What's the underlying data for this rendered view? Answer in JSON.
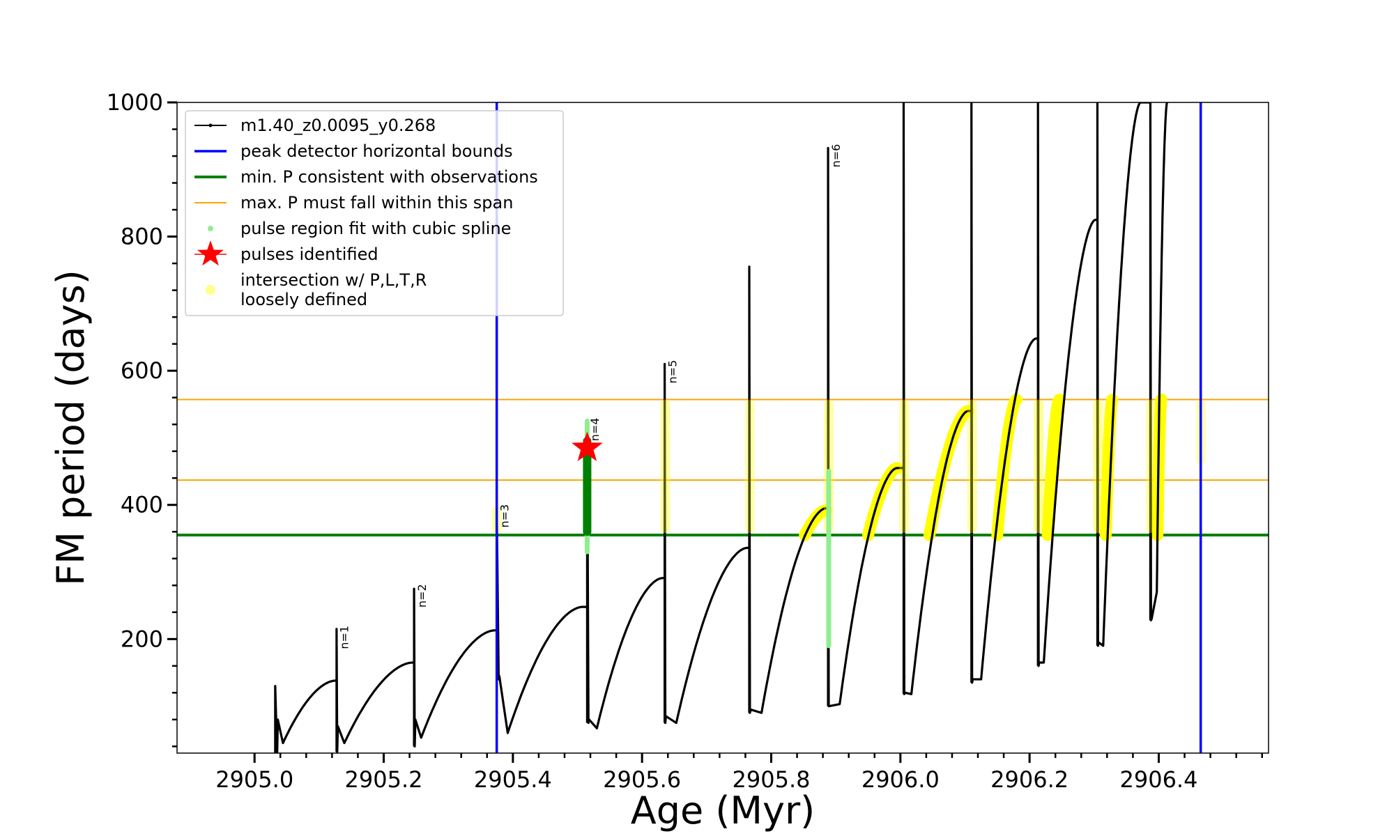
{
  "chart_data": {
    "type": "line",
    "title": "",
    "xlabel": "Age (Myr)",
    "ylabel": "FM period (days)",
    "xlim": [
      2904.88,
      2906.57
    ],
    "ylim": [
      30,
      1000
    ],
    "x_ticks": [
      {
        "value": 2905.0,
        "label": "2905.0"
      },
      {
        "value": 2905.2,
        "label": "2905.2"
      },
      {
        "value": 2905.4,
        "label": "2905.4"
      },
      {
        "value": 2905.6,
        "label": "2905.6"
      },
      {
        "value": 2905.8,
        "label": "2905.8"
      },
      {
        "value": 2906.0,
        "label": "2906.0"
      },
      {
        "value": 2906.2,
        "label": "2906.2"
      },
      {
        "value": 2906.4,
        "label": "2906.4"
      }
    ],
    "y_ticks": [
      {
        "value": 200,
        "label": "200"
      },
      {
        "value": 400,
        "label": "400"
      },
      {
        "value": 600,
        "label": "600"
      },
      {
        "value": 800,
        "label": "800"
      },
      {
        "value": 1000,
        "label": "1000"
      }
    ],
    "legend": {
      "placement": "upper-left",
      "entries": [
        {
          "key": "model",
          "label": "m1.40_z0.0095_y0.268"
        },
        {
          "key": "hbounds",
          "label": "peak detector horizontal bounds"
        },
        {
          "key": "minp",
          "label": "min. P consistent with observations"
        },
        {
          "key": "maxspan",
          "label": "max. P must fall within this span"
        },
        {
          "key": "spline",
          "label": "pulse region fit with cubic spline"
        },
        {
          "key": "pulses",
          "label": "pulses identified"
        },
        {
          "key": "intersect",
          "label": "intersection w/ P,L,T,R\nloosely defined"
        }
      ]
    },
    "colors": {
      "model": "#000000",
      "hbounds": "#0000ff",
      "minp": "#008000",
      "maxspan": "#ffa500",
      "spline": "#90ee90",
      "spline_dark": "#008000",
      "pulses": "#ff0000",
      "intersect": "#ffff00"
    },
    "vertical_bounds_x": [
      2905.375,
      2906.465
    ],
    "min_period": 355,
    "max_span": [
      437,
      557
    ],
    "series": [
      {
        "name": "m1.40_z0.0095_y0.268",
        "cycles": [
          {
            "start": 2905.032,
            "peak": 130,
            "trough": 27,
            "trough_x": 2905.035,
            "top": 80,
            "end": 2905.044,
            "end_y": 45,
            "max_x": 2905.125,
            "max_y": 138
          },
          {
            "start": 2905.127,
            "peak": 215,
            "trough": 32,
            "trough_x": 2905.128,
            "top": 70,
            "end": 2905.139,
            "end_y": 45,
            "max_x": 2905.245,
            "max_y": 165
          },
          {
            "start": 2905.247,
            "peak": 275,
            "trough": 40,
            "trough_x": 2905.248,
            "top": 80,
            "end": 2905.258,
            "end_y": 53,
            "max_x": 2905.372,
            "max_y": 213
          },
          {
            "start": 2905.375,
            "peak": 395,
            "trough": 140,
            "trough_x": 2905.378,
            "top": 145,
            "end": 2905.392,
            "end_y": 60,
            "max_x": 2905.508,
            "max_y": 248
          },
          {
            "start": 2905.515,
            "peak": 525,
            "trough": 75,
            "trough_x": 2905.517,
            "top": 80,
            "end": 2905.53,
            "end_y": 67,
            "max_x": 2905.632,
            "max_y": 291
          },
          {
            "start": 2905.635,
            "peak": 610,
            "trough": 75,
            "trough_x": 2905.636,
            "top": 85,
            "end": 2905.653,
            "end_y": 75,
            "max_x": 2905.763,
            "max_y": 336
          },
          {
            "start": 2905.766,
            "peak": 755,
            "trough": 90,
            "trough_x": 2905.767,
            "top": 95,
            "end": 2905.785,
            "end_y": 90,
            "max_x": 2905.885,
            "max_y": 395
          },
          {
            "start": 2905.888,
            "peak": 932,
            "trough": 100,
            "trough_x": 2905.889,
            "top": 100,
            "end": 2905.906,
            "end_y": 103,
            "max_x": 2905.995,
            "max_y": 455
          },
          {
            "start": 2906.005,
            "peak": 1000,
            "trough": 118,
            "trough_x": 2906.006,
            "top": 120,
            "end": 2906.017,
            "end_y": 118,
            "max_x": 2906.105,
            "max_y": 540
          },
          {
            "start": 2906.11,
            "peak": 1000,
            "trough": 135,
            "trough_x": 2906.111,
            "top": 140,
            "end": 2906.125,
            "end_y": 140,
            "max_x": 2906.21,
            "max_y": 648
          },
          {
            "start": 2906.213,
            "peak": 1000,
            "trough": 160,
            "trough_x": 2906.214,
            "top": 165,
            "end": 2906.222,
            "end_y": 165,
            "max_x": 2906.302,
            "max_y": 825
          },
          {
            "start": 2906.305,
            "peak": 1000,
            "trough": 190,
            "trough_x": 2906.306,
            "top": 195,
            "end": 2906.314,
            "end_y": 190,
            "max_x": 2906.372,
            "max_y": 1000
          },
          {
            "start": 2906.387,
            "peak": 1000,
            "trough": 228,
            "trough_x": 2906.388,
            "top": 230,
            "end": 2906.397,
            "end_y": 270,
            "max_x": 2906.413,
            "max_y": 1000
          }
        ]
      }
    ],
    "pulses_identified": [
      {
        "x": 2905.515,
        "y": 485
      }
    ],
    "pulse_annotations": [
      {
        "label": "n=1",
        "x": 2905.13,
        "y": 220
      },
      {
        "label": "n=2",
        "x": 2905.25,
        "y": 282
      },
      {
        "label": "n=3",
        "x": 2905.378,
        "y": 401
      },
      {
        "label": "n=4",
        "x": 2905.518,
        "y": 530
      },
      {
        "label": "n=5",
        "x": 2905.638,
        "y": 616
      },
      {
        "label": "n=6",
        "x": 2905.891,
        "y": 938
      }
    ],
    "intersection_regions": [
      {
        "x": 2905.375,
        "y0": 358,
        "y1": 398,
        "alpha": 0.35
      },
      {
        "x": 2905.636,
        "y0": 358,
        "y1": 557,
        "alpha": 0.35
      },
      {
        "x": 2905.767,
        "y0": 358,
        "y1": 557,
        "alpha": 0.3
      },
      {
        "x": 2905.889,
        "y0": 358,
        "y1": 557,
        "alpha": 0.35
      },
      {
        "x": 2906.006,
        "y0": 358,
        "y1": 557,
        "alpha": 0.35
      },
      {
        "x": 2906.111,
        "y0": 358,
        "y1": 557,
        "alpha": 0.35
      },
      {
        "x": 2906.214,
        "y0": 358,
        "y1": 557,
        "alpha": 0.4
      },
      {
        "x": 2906.306,
        "y0": 358,
        "y1": 557,
        "alpha": 0.4
      },
      {
        "x": 2906.388,
        "y0": 358,
        "y1": 557,
        "alpha": 0.35
      },
      {
        "x": 2906.465,
        "y0": 460,
        "y1": 557,
        "alpha": 0.3
      }
    ],
    "intersection_arcs": [
      {
        "x0": 2905.852,
        "x1": 2905.885,
        "y0": 355,
        "y1": 392
      },
      {
        "x0": 2905.95,
        "x1": 2905.995,
        "y0": 355,
        "y1": 455
      },
      {
        "x0": 2906.045,
        "x1": 2906.105,
        "y0": 355,
        "y1": 540
      },
      {
        "x0": 2906.15,
        "x1": 2906.18,
        "y0": 355,
        "y1": 557
      },
      {
        "x0": 2906.228,
        "x1": 2906.246,
        "y0": 355,
        "y1": 557
      },
      {
        "x0": 2906.318,
        "x1": 2906.328,
        "y0": 355,
        "y1": 557
      },
      {
        "x0": 2906.398,
        "x1": 2906.404,
        "y0": 355,
        "y1": 557
      }
    ],
    "spline_regions": [
      {
        "x": 2905.515,
        "y0": 330,
        "y1": 525,
        "dark_y0": 360,
        "dark_y1": 495
      },
      {
        "x": 2905.889,
        "y0": 190,
        "y1": 450
      }
    ]
  }
}
